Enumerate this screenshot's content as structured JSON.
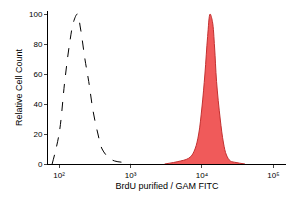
{
  "chart_data": {
    "type": "line",
    "xlabel": "BrdU purified / GAM FITC",
    "ylabel": "Relative Cell Count",
    "log": "x",
    "grid": false,
    "xlim": [
      70,
      150000
    ],
    "xticks": [
      {
        "value": 100,
        "label": "10²"
      },
      {
        "value": 1000,
        "label": "10³"
      },
      {
        "value": 10000,
        "label": "10⁴"
      },
      {
        "value": 100000,
        "label": "10⁵"
      }
    ],
    "ylim": [
      0,
      102
    ],
    "yticks": [
      0,
      20,
      40,
      60,
      80,
      100
    ],
    "series": [
      {
        "color": "#000000",
        "line_style": "dashed",
        "x": [
          80,
          100,
          120,
          140,
          160,
          180,
          200,
          230,
          260,
          300,
          350,
          400,
          500,
          600,
          800,
          1000
        ],
        "values": [
          0,
          20,
          55,
          80,
          95,
          100,
          90,
          70,
          55,
          35,
          20,
          10,
          4,
          2,
          1,
          0
        ]
      },
      {
        "color": "#f05a5a",
        "line_style": "solid",
        "x": [
          3000,
          4000,
          5000,
          6000,
          7000,
          8000,
          9000,
          10000,
          11000,
          12000,
          13000,
          14000,
          15000,
          16000,
          18000,
          20000,
          22000,
          25000,
          30000,
          40000
        ],
        "values": [
          0,
          1,
          2,
          3,
          5,
          10,
          20,
          38,
          60,
          85,
          100,
          95,
          78,
          55,
          30,
          14,
          6,
          2,
          1,
          0
        ]
      }
    ]
  }
}
